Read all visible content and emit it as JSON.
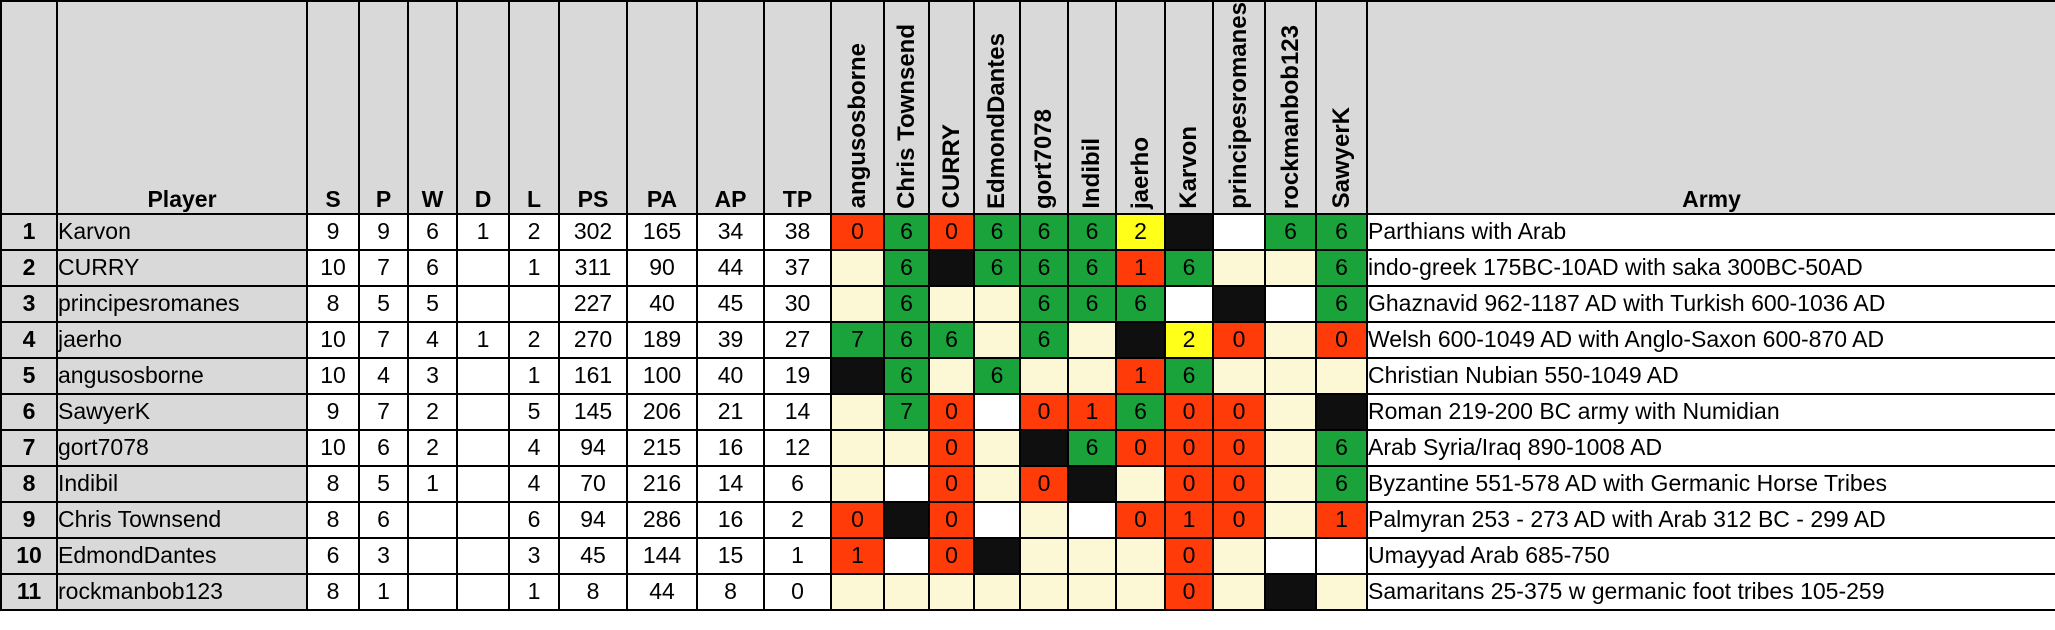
{
  "headers": {
    "rank": "",
    "player": "Player",
    "s": "S",
    "p": "P",
    "w": "W",
    "d": "D",
    "l": "L",
    "ps": "PS",
    "pa": "PA",
    "ap": "AP",
    "tp": "TP",
    "army": "Army"
  },
  "opponents": [
    "angusosborne",
    "Chris Townsend",
    "CURRY",
    "EdmondDantes",
    "gort7078",
    "Indibil",
    "jaerho",
    "Karvon",
    "principesromanes",
    "rockmanbob123",
    "SawyerK"
  ],
  "colors": {
    "red": "#ff3b0a",
    "green": "#1aa33a",
    "yellow": "#ffff1a",
    "black": "#0f0f0f",
    "cream": "#fcf7d4",
    "white": "#ffffff",
    "header_gray": "#d9d9d9"
  },
  "rows": [
    {
      "rank": "1",
      "player": "Karvon",
      "s": "9",
      "p": "9",
      "w": "6",
      "d": "1",
      "l": "2",
      "ps": "302",
      "pa": "165",
      "ap": "34",
      "tp": "38",
      "cells": [
        {
          "v": "0",
          "c": "red"
        },
        {
          "v": "6",
          "c": "green"
        },
        {
          "v": "0",
          "c": "red"
        },
        {
          "v": "6",
          "c": "green"
        },
        {
          "v": "6",
          "c": "green"
        },
        {
          "v": "6",
          "c": "green"
        },
        {
          "v": "2",
          "c": "yellow"
        },
        {
          "v": "",
          "c": "black"
        },
        {
          "v": "",
          "c": "white"
        },
        {
          "v": "6",
          "c": "green"
        },
        {
          "v": "6",
          "c": "green"
        }
      ],
      "army": "Parthians with Arab"
    },
    {
      "rank": "2",
      "player": "CURRY",
      "s": "10",
      "p": "7",
      "w": "6",
      "d": "",
      "l": "1",
      "ps": "311",
      "pa": "90",
      "ap": "44",
      "tp": "37",
      "cells": [
        {
          "v": "",
          "c": "cream"
        },
        {
          "v": "6",
          "c": "green"
        },
        {
          "v": "",
          "c": "black"
        },
        {
          "v": "6",
          "c": "green"
        },
        {
          "v": "6",
          "c": "green"
        },
        {
          "v": "6",
          "c": "green"
        },
        {
          "v": "1",
          "c": "red"
        },
        {
          "v": "6",
          "c": "green"
        },
        {
          "v": "",
          "c": "cream"
        },
        {
          "v": "",
          "c": "cream"
        },
        {
          "v": "6",
          "c": "green"
        }
      ],
      "army": "indo-greek 175BC-10AD with saka 300BC-50AD"
    },
    {
      "rank": "3",
      "player": "principesromanes",
      "s": "8",
      "p": "5",
      "w": "5",
      "d": "",
      "l": "",
      "ps": "227",
      "pa": "40",
      "ap": "45",
      "tp": "30",
      "cells": [
        {
          "v": "",
          "c": "cream"
        },
        {
          "v": "6",
          "c": "green"
        },
        {
          "v": "",
          "c": "cream"
        },
        {
          "v": "",
          "c": "cream"
        },
        {
          "v": "6",
          "c": "green"
        },
        {
          "v": "6",
          "c": "green"
        },
        {
          "v": "6",
          "c": "green"
        },
        {
          "v": "",
          "c": "white"
        },
        {
          "v": "",
          "c": "black"
        },
        {
          "v": "",
          "c": "white"
        },
        {
          "v": "6",
          "c": "green"
        }
      ],
      "army": "Ghaznavid 962-1187 AD with Turkish 600-1036 AD"
    },
    {
      "rank": "4",
      "player": "jaerho",
      "s": "10",
      "p": "7",
      "w": "4",
      "d": "1",
      "l": "2",
      "ps": "270",
      "pa": "189",
      "ap": "39",
      "tp": "27",
      "cells": [
        {
          "v": "7",
          "c": "green"
        },
        {
          "v": "6",
          "c": "green"
        },
        {
          "v": "6",
          "c": "green"
        },
        {
          "v": "",
          "c": "cream"
        },
        {
          "v": "6",
          "c": "green"
        },
        {
          "v": "",
          "c": "cream"
        },
        {
          "v": "",
          "c": "black"
        },
        {
          "v": "2",
          "c": "yellow"
        },
        {
          "v": "0",
          "c": "red"
        },
        {
          "v": "",
          "c": "cream"
        },
        {
          "v": "0",
          "c": "red"
        }
      ],
      "army": "Welsh 600-1049 AD with Anglo-Saxon 600-870 AD"
    },
    {
      "rank": "5",
      "player": "angusosborne",
      "s": "10",
      "p": "4",
      "w": "3",
      "d": "",
      "l": "1",
      "ps": "161",
      "pa": "100",
      "ap": "40",
      "tp": "19",
      "cells": [
        {
          "v": "",
          "c": "black"
        },
        {
          "v": "6",
          "c": "green"
        },
        {
          "v": "",
          "c": "cream"
        },
        {
          "v": "6",
          "c": "green"
        },
        {
          "v": "",
          "c": "cream"
        },
        {
          "v": "",
          "c": "cream"
        },
        {
          "v": "1",
          "c": "red"
        },
        {
          "v": "6",
          "c": "green"
        },
        {
          "v": "",
          "c": "cream"
        },
        {
          "v": "",
          "c": "cream"
        },
        {
          "v": "",
          "c": "cream"
        }
      ],
      "army": "Christian Nubian 550-1049 AD"
    },
    {
      "rank": "6",
      "player": "SawyerK",
      "s": "9",
      "p": "7",
      "w": "2",
      "d": "",
      "l": "5",
      "ps": "145",
      "pa": "206",
      "ap": "21",
      "tp": "14",
      "cells": [
        {
          "v": "",
          "c": "cream"
        },
        {
          "v": "7",
          "c": "green"
        },
        {
          "v": "0",
          "c": "red"
        },
        {
          "v": "",
          "c": "white"
        },
        {
          "v": "0",
          "c": "red"
        },
        {
          "v": "1",
          "c": "red"
        },
        {
          "v": "6",
          "c": "green"
        },
        {
          "v": "0",
          "c": "red"
        },
        {
          "v": "0",
          "c": "red"
        },
        {
          "v": "",
          "c": "cream"
        },
        {
          "v": "",
          "c": "black"
        }
      ],
      "army": "Roman 219-200 BC army with Numidian"
    },
    {
      "rank": "7",
      "player": "gort7078",
      "s": "10",
      "p": "6",
      "w": "2",
      "d": "",
      "l": "4",
      "ps": "94",
      "pa": "215",
      "ap": "16",
      "tp": "12",
      "cells": [
        {
          "v": "",
          "c": "cream"
        },
        {
          "v": "",
          "c": "cream"
        },
        {
          "v": "0",
          "c": "red"
        },
        {
          "v": "",
          "c": "cream"
        },
        {
          "v": "",
          "c": "black"
        },
        {
          "v": "6",
          "c": "green"
        },
        {
          "v": "0",
          "c": "red"
        },
        {
          "v": "0",
          "c": "red"
        },
        {
          "v": "0",
          "c": "red"
        },
        {
          "v": "",
          "c": "cream"
        },
        {
          "v": "6",
          "c": "green"
        }
      ],
      "army": "Arab Syria/Iraq 890-1008 AD"
    },
    {
      "rank": "8",
      "player": "Indibil",
      "s": "8",
      "p": "5",
      "w": "1",
      "d": "",
      "l": "4",
      "ps": "70",
      "pa": "216",
      "ap": "14",
      "tp": "6",
      "cells": [
        {
          "v": "",
          "c": "cream"
        },
        {
          "v": "",
          "c": "white"
        },
        {
          "v": "0",
          "c": "red"
        },
        {
          "v": "",
          "c": "cream"
        },
        {
          "v": "0",
          "c": "red"
        },
        {
          "v": "",
          "c": "black"
        },
        {
          "v": "",
          "c": "cream"
        },
        {
          "v": "0",
          "c": "red"
        },
        {
          "v": "0",
          "c": "red"
        },
        {
          "v": "",
          "c": "cream"
        },
        {
          "v": "6",
          "c": "green"
        }
      ],
      "army": "Byzantine 551-578 AD with Germanic Horse Tribes"
    },
    {
      "rank": "9",
      "player": "Chris Townsend",
      "s": "8",
      "p": "6",
      "w": "",
      "d": "",
      "l": "6",
      "ps": "94",
      "pa": "286",
      "ap": "16",
      "tp": "2",
      "cells": [
        {
          "v": "0",
          "c": "red"
        },
        {
          "v": "",
          "c": "black"
        },
        {
          "v": "0",
          "c": "red"
        },
        {
          "v": "",
          "c": "white"
        },
        {
          "v": "",
          "c": "cream"
        },
        {
          "v": "",
          "c": "white"
        },
        {
          "v": "0",
          "c": "red"
        },
        {
          "v": "1",
          "c": "red"
        },
        {
          "v": "0",
          "c": "red"
        },
        {
          "v": "",
          "c": "cream"
        },
        {
          "v": "1",
          "c": "red"
        }
      ],
      "army": "Palmyran 253 - 273 AD with Arab 312 BC - 299 AD"
    },
    {
      "rank": "10",
      "player": "EdmondDantes",
      "s": "6",
      "p": "3",
      "w": "",
      "d": "",
      "l": "3",
      "ps": "45",
      "pa": "144",
      "ap": "15",
      "tp": "1",
      "cells": [
        {
          "v": "1",
          "c": "red"
        },
        {
          "v": "",
          "c": "white"
        },
        {
          "v": "0",
          "c": "red"
        },
        {
          "v": "",
          "c": "black"
        },
        {
          "v": "",
          "c": "cream"
        },
        {
          "v": "",
          "c": "cream"
        },
        {
          "v": "",
          "c": "cream"
        },
        {
          "v": "0",
          "c": "red"
        },
        {
          "v": "",
          "c": "cream"
        },
        {
          "v": "",
          "c": "white"
        },
        {
          "v": "",
          "c": "white"
        }
      ],
      "army": "Umayyad Arab 685-750"
    },
    {
      "rank": "11",
      "player": "rockmanbob123",
      "s": "8",
      "p": "1",
      "w": "",
      "d": "",
      "l": "1",
      "ps": "8",
      "pa": "44",
      "ap": "8",
      "tp": "0",
      "cells": [
        {
          "v": "",
          "c": "cream"
        },
        {
          "v": "",
          "c": "cream"
        },
        {
          "v": "",
          "c": "cream"
        },
        {
          "v": "",
          "c": "cream"
        },
        {
          "v": "",
          "c": "cream"
        },
        {
          "v": "",
          "c": "cream"
        },
        {
          "v": "",
          "c": "cream"
        },
        {
          "v": "0",
          "c": "red"
        },
        {
          "v": "",
          "c": "cream"
        },
        {
          "v": "",
          "c": "black"
        },
        {
          "v": "",
          "c": "cream"
        }
      ],
      "army": "Samaritans 25-375 w germanic foot tribes 105-259"
    }
  ]
}
